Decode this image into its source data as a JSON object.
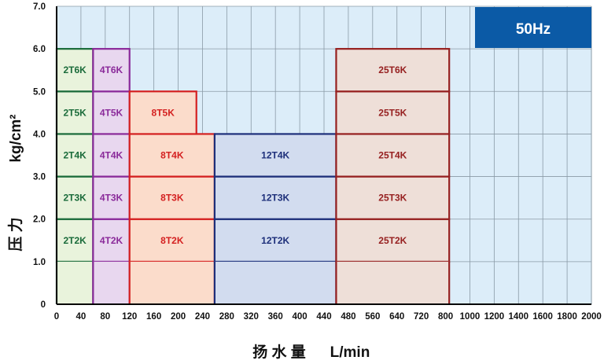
{
  "chart_data": {
    "type": "area",
    "title": "",
    "badge": "50Hz",
    "xlabel": "扬 水 量 L/min",
    "ylabel": "压 力 kg/cm²",
    "ylabel_cn": "压 力",
    "ylabel_unit": "kg/cm²",
    "xlabel_cn": "扬 水 量",
    "xlabel_unit": "L/min",
    "x_ticks": [
      "0",
      "40",
      "80",
      "120",
      "160",
      "200",
      "240",
      "280",
      "320",
      "360",
      "400",
      "440",
      "480",
      "560",
      "640",
      "720",
      "800",
      "1000",
      "1200",
      "1400",
      "1600",
      "1800",
      "2000"
    ],
    "y_ticks": [
      "0",
      "1.0",
      "2.0",
      "3.0",
      "4.0",
      "5.0",
      "6.0",
      "7.0"
    ],
    "ylim": [
      0,
      7.0
    ],
    "grid": true,
    "colors": {
      "plot_bg": "#dcedf9",
      "grid": "#8a9aa6",
      "badge_bg": "#0b5aa6",
      "axis": "#000000"
    },
    "series": [
      {
        "name": "2T",
        "color": "#1a6b3a",
        "fill": "#e9f3dc",
        "x_range": [
          0,
          60
        ],
        "cells": [
          {
            "y0": 1,
            "y1": 2,
            "label": "2T2K"
          },
          {
            "y0": 2,
            "y1": 3,
            "label": "2T3K"
          },
          {
            "y0": 3,
            "y1": 4,
            "label": "2T4K"
          },
          {
            "y0": 4,
            "y1": 5,
            "label": "2T5K"
          },
          {
            "y0": 5,
            "y1": 6,
            "label": "2T6K"
          }
        ]
      },
      {
        "name": "4T",
        "color": "#8a2a9a",
        "fill": "#e8d7ef",
        "x_range": [
          60,
          120
        ],
        "cells": [
          {
            "y0": 1,
            "y1": 2,
            "label": "4T2K"
          },
          {
            "y0": 2,
            "y1": 3,
            "label": "4T3K"
          },
          {
            "y0": 3,
            "y1": 4,
            "label": "4T4K"
          },
          {
            "y0": 4,
            "y1": 5,
            "label": "4T5K"
          },
          {
            "y0": 5,
            "y1": 6,
            "label": "4T6K"
          }
        ]
      },
      {
        "name": "8T",
        "color": "#d42020",
        "fill": "#fbdccb",
        "x_range": [
          120,
          260
        ],
        "cells": [
          {
            "y0": 1,
            "y1": 2,
            "label": "8T2K"
          },
          {
            "y0": 2,
            "y1": 3,
            "label": "8T3K"
          },
          {
            "y0": 3,
            "y1": 4,
            "label": "8T4K"
          },
          {
            "y0": 4,
            "y1": 5,
            "label": "8T5K",
            "x1": 230
          }
        ]
      },
      {
        "name": "12T",
        "color": "#1d2f7a",
        "fill": "#d2dcef",
        "x_range": [
          260,
          460
        ],
        "cells": [
          {
            "y0": 1,
            "y1": 2,
            "label": "12T2K"
          },
          {
            "y0": 2,
            "y1": 3,
            "label": "12T3K"
          },
          {
            "y0": 3,
            "y1": 4,
            "label": "12T4K"
          }
        ]
      },
      {
        "name": "25T",
        "color": "#962020",
        "fill": "#eedfd8",
        "x_range": [
          460,
          830
        ],
        "cells": [
          {
            "y0": 1,
            "y1": 2,
            "label": "25T2K"
          },
          {
            "y0": 2,
            "y1": 3,
            "label": "25T3K"
          },
          {
            "y0": 3,
            "y1": 4,
            "label": "25T4K"
          },
          {
            "y0": 4,
            "y1": 5,
            "label": "25T5K"
          },
          {
            "y0": 5,
            "y1": 6,
            "label": "25T6K"
          }
        ]
      }
    ]
  }
}
